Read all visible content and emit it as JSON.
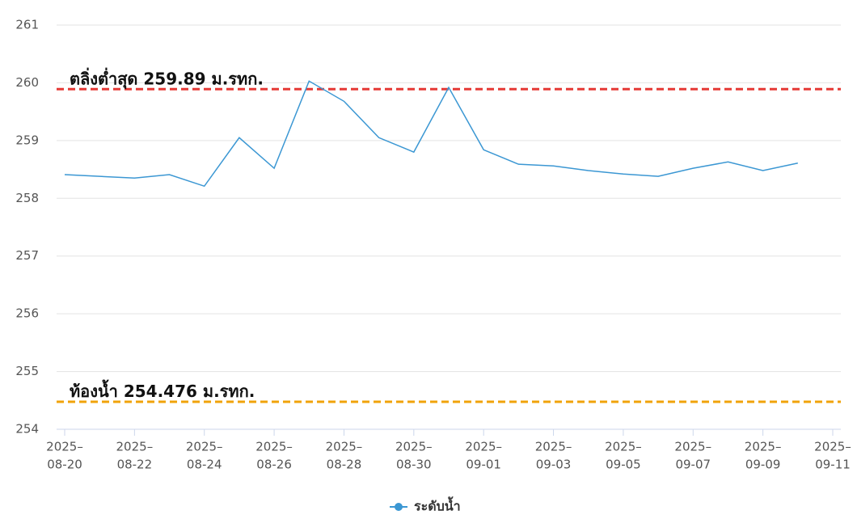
{
  "chart_data": {
    "type": "line",
    "x": [
      "2025-08-20",
      "2025-08-21",
      "2025-08-22",
      "2025-08-23",
      "2025-08-24",
      "2025-08-25",
      "2025-08-26",
      "2025-08-27",
      "2025-08-28",
      "2025-08-29",
      "2025-08-30",
      "2025-08-31",
      "2025-09-01",
      "2025-09-02",
      "2025-09-03",
      "2025-09-04",
      "2025-09-05",
      "2025-09-06",
      "2025-09-07",
      "2025-09-08",
      "2025-09-09",
      "2025-09-10"
    ],
    "series": [
      {
        "name": "ระดับน้ำ",
        "color": "#3b97d3",
        "values": [
          258.41,
          258.38,
          258.35,
          258.41,
          258.21,
          259.05,
          258.52,
          260.03,
          259.68,
          259.05,
          258.8,
          259.92,
          258.84,
          258.59,
          258.56,
          258.48,
          258.42,
          258.38,
          258.52,
          258.63,
          258.48,
          258.61
        ]
      }
    ],
    "xlim": [
      "2025-08-20",
      "2025-09-11"
    ],
    "xticks": [
      {
        "value": "2025-08-20",
        "label": [
          "2025–",
          "08-20"
        ]
      },
      {
        "value": "2025-08-22",
        "label": [
          "2025–",
          "08-22"
        ]
      },
      {
        "value": "2025-08-24",
        "label": [
          "2025–",
          "08-24"
        ]
      },
      {
        "value": "2025-08-26",
        "label": [
          "2025–",
          "08-26"
        ]
      },
      {
        "value": "2025-08-28",
        "label": [
          "2025–",
          "08-28"
        ]
      },
      {
        "value": "2025-08-30",
        "label": [
          "2025–",
          "08-30"
        ]
      },
      {
        "value": "2025-09-01",
        "label": [
          "2025–",
          "09-01"
        ]
      },
      {
        "value": "2025-09-03",
        "label": [
          "2025–",
          "09-03"
        ]
      },
      {
        "value": "2025-09-05",
        "label": [
          "2025–",
          "09-05"
        ]
      },
      {
        "value": "2025-09-07",
        "label": [
          "2025–",
          "09-07"
        ]
      },
      {
        "value": "2025-09-09",
        "label": [
          "2025–",
          "09-09"
        ]
      },
      {
        "value": "2025-09-11",
        "label": [
          "2025–",
          "09-11"
        ]
      }
    ],
    "ylim": [
      254,
      261
    ],
    "yticks": [
      254,
      255,
      256,
      257,
      258,
      259,
      260,
      261
    ],
    "grid": true,
    "legend": "bottom",
    "reference_lines": [
      {
        "value": 259.89,
        "label": "ตลิ่งต่ำสุด 259.89 ม.รทก.",
        "color": "#e53935"
      },
      {
        "value": 254.476,
        "label": "ท้องน้ำ 254.476 ม.รทก.",
        "color": "#f0a30a"
      }
    ]
  }
}
